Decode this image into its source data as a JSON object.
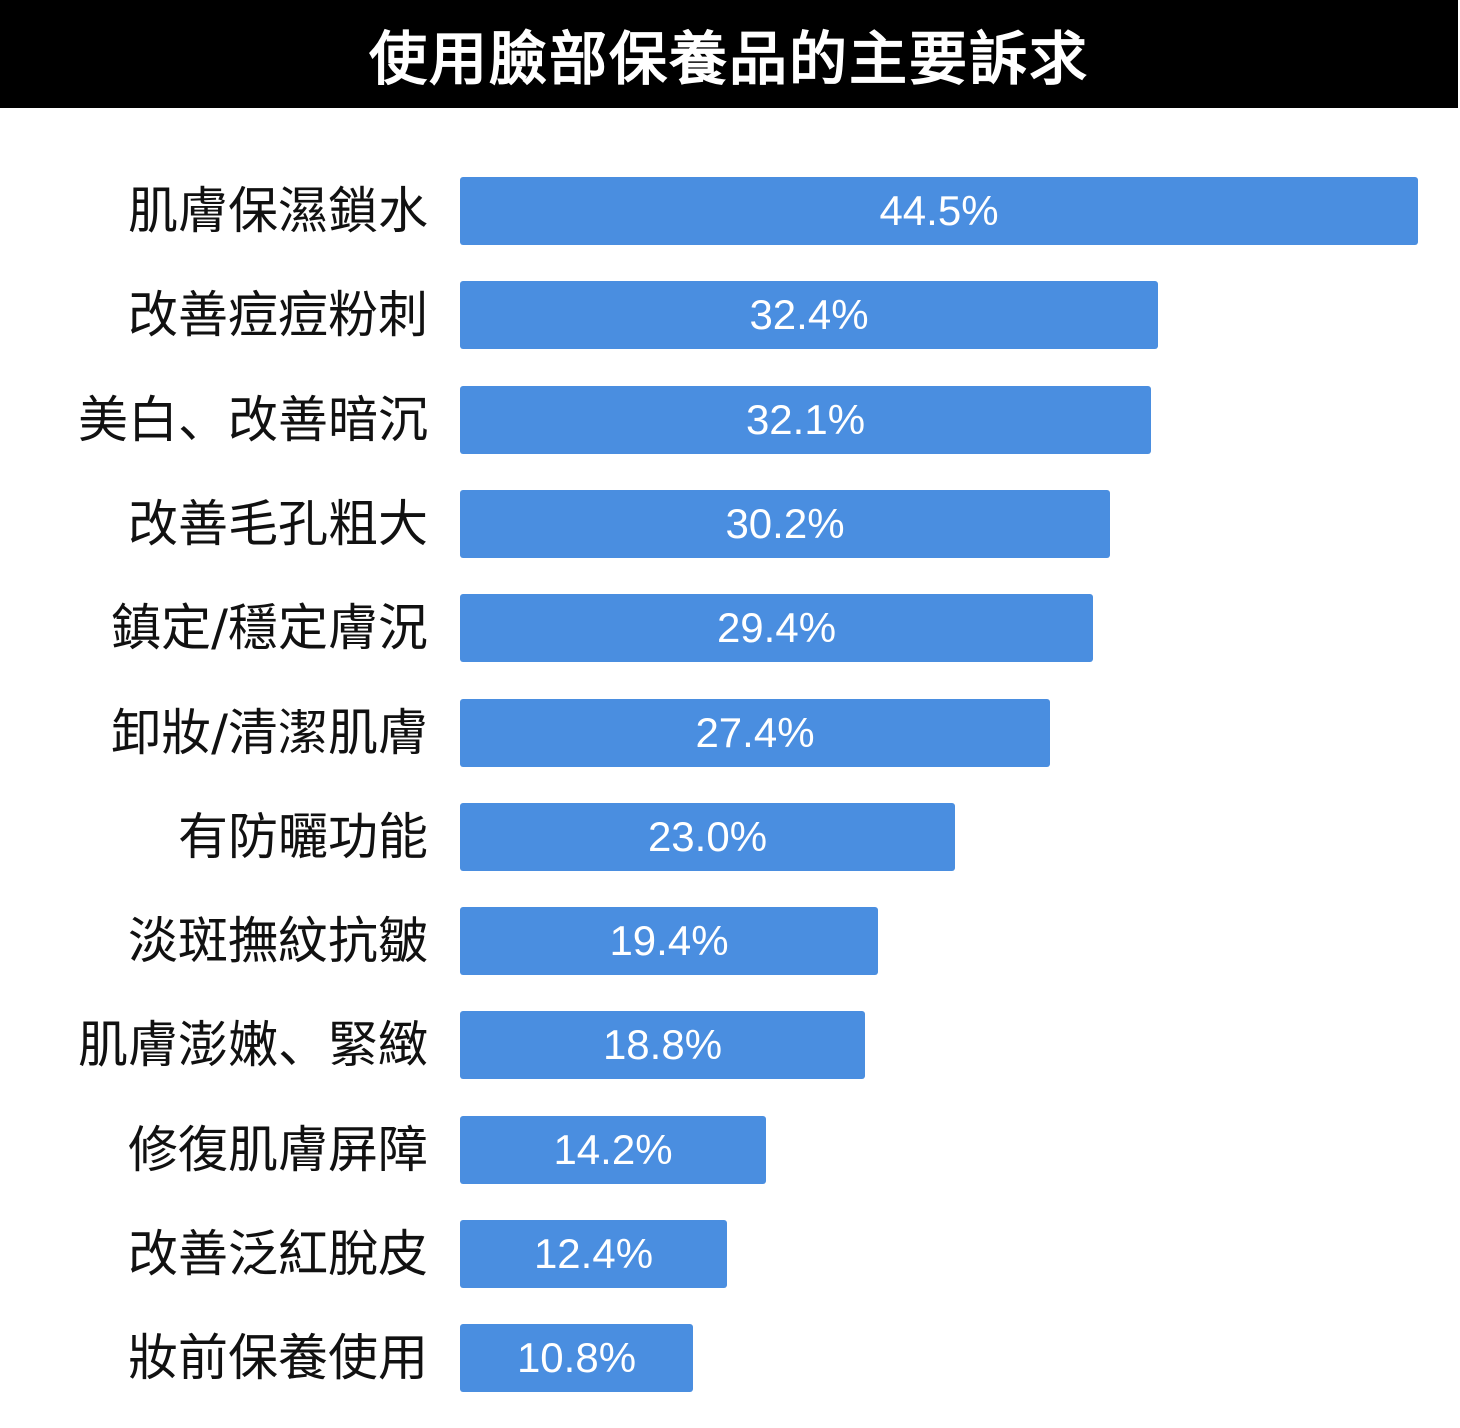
{
  "header": {
    "title": "使用臉部保養品的主要訴求"
  },
  "colors": {
    "bar": "#4a8ee0",
    "title_bg": "#000000",
    "title_text": "#ffffff"
  },
  "chart_data": {
    "type": "bar",
    "orientation": "horizontal",
    "title": "使用臉部保養品的主要訴求",
    "categories": [
      "肌膚保濕鎖水",
      "改善痘痘粉刺",
      "美白、改善暗沉",
      "改善毛孔粗大",
      "鎮定/穩定膚況",
      "卸妝/清潔肌膚",
      "有防曬功能",
      "淡斑撫紋抗皺",
      "肌膚澎嫩、緊緻",
      "修復肌膚屏障",
      "改善泛紅脫皮",
      "妝前保養使用"
    ],
    "values": [
      44.5,
      32.4,
      32.1,
      30.2,
      29.4,
      27.4,
      23.0,
      19.4,
      18.8,
      14.2,
      12.4,
      10.8
    ],
    "value_labels": [
      "44.5%",
      "32.4%",
      "32.1%",
      "30.2%",
      "29.4%",
      "27.4%",
      "23.0%",
      "19.4%",
      "18.8%",
      "14.2%",
      "12.4%",
      "10.8%"
    ],
    "unit": "%",
    "grid": false,
    "legend": "none"
  }
}
